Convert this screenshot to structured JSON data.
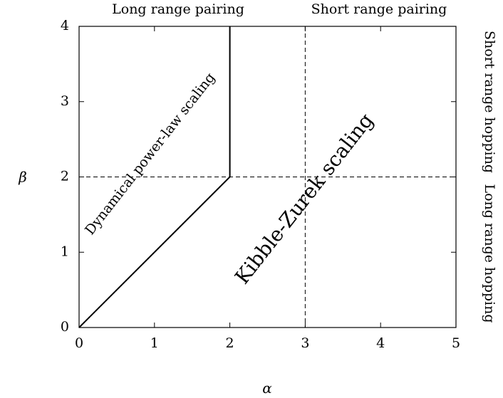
{
  "chart_data": {
    "type": "line",
    "xlabel": "α",
    "ylabel": "β",
    "xlim": [
      0,
      5
    ],
    "ylim": [
      0,
      4
    ],
    "xticks": [
      "0",
      "1",
      "2",
      "3",
      "4",
      "5"
    ],
    "yticks": [
      "0",
      "1",
      "2",
      "3",
      "4"
    ],
    "grid": false,
    "series": [
      {
        "style": "solid",
        "points": [
          [
            0,
            0
          ],
          [
            2,
            2
          ],
          [
            2,
            4
          ]
        ]
      }
    ],
    "reference_lines": [
      {
        "orientation": "vertical",
        "x": 3,
        "style": "dashed"
      },
      {
        "orientation": "horizontal",
        "y": 2,
        "style": "dashed"
      }
    ],
    "top_labels": {
      "left": "Long range pairing",
      "right": "Short range pairing"
    },
    "right_labels": {
      "upper": "Short range hopping",
      "lower": "Long range hopping"
    },
    "annotations": [
      {
        "id": "dynamical",
        "text": "Dynamical power-law scaling",
        "x": 0.95,
        "y": 2.3
      },
      {
        "id": "kibble",
        "text": "Kibble-Zurek scaling",
        "x": 3.0,
        "y": 1.7
      }
    ]
  }
}
